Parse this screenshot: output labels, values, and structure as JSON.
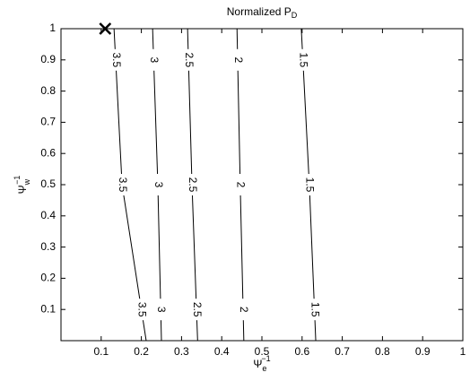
{
  "chart_data": {
    "type": "contour",
    "title": "Normalized P",
    "title_sub": "D",
    "x_label": {
      "base": "Ψ",
      "sup": "−1",
      "sub": "e"
    },
    "y_label": {
      "base": "Ψ",
      "sup": "−1",
      "sub": "w"
    },
    "xlim": [
      0,
      1
    ],
    "ylim": [
      0,
      1
    ],
    "xticks": [
      0.1,
      0.2,
      0.3,
      0.4,
      0.5,
      0.6,
      0.7,
      0.8,
      0.9,
      1
    ],
    "yticks": [
      0.1,
      0.2,
      0.3,
      0.4,
      0.5,
      0.6,
      0.7,
      0.8,
      0.9,
      1
    ],
    "color": "#000000",
    "contours": [
      {
        "level": 3.5,
        "x": [
          0.212,
          0.152,
          0.132
        ],
        "y": [
          0,
          0.5,
          1
        ]
      },
      {
        "level": 3,
        "x": [
          0.25,
          0.241,
          0.228
        ],
        "y": [
          0,
          0.5,
          1
        ]
      },
      {
        "level": 2.5,
        "x": [
          0.34,
          0.326,
          0.315
        ],
        "y": [
          0,
          0.5,
          1
        ]
      },
      {
        "level": 2,
        "x": [
          0.455,
          0.446,
          0.438
        ],
        "y": [
          0,
          0.5,
          1
        ]
      },
      {
        "level": 1.5,
        "x": [
          0.634,
          0.618,
          0.598
        ],
        "y": [
          0,
          0.5,
          1
        ]
      }
    ],
    "marker": {
      "x": 0.11,
      "y": 1
    }
  }
}
